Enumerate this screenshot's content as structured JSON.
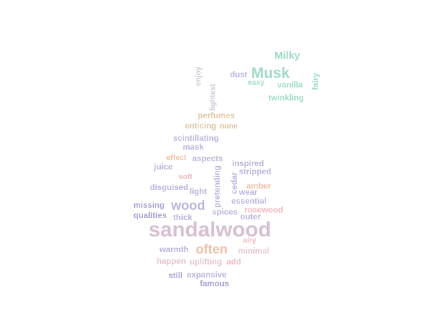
{
  "words": {
    "milky": "Milky",
    "musk": "Musk",
    "dust": "dust",
    "easy": "easy",
    "vanilla": "vanilla",
    "fairy": "fairy",
    "enjoy": "enjoy",
    "lightest": "lightest",
    "twinkling": "twinkling",
    "perfumes": "perfumes",
    "enticing": "enticing",
    "none": "none",
    "scintillating": "scintillating",
    "mask": "mask",
    "effect": "effect",
    "aspects": "aspects",
    "juice": "juice",
    "inspired": "inspired",
    "stripped": "stripped",
    "pretending": "pretending",
    "cedar": "cedar",
    "soft": "soft",
    "amber": "amber",
    "disguised": "disguised",
    "light": "light",
    "wear": "wear",
    "essential": "essential",
    "missing": "missing",
    "wood": "wood",
    "rosewood": "rosewood",
    "spices": "spices",
    "qualities": "qualities",
    "thick": "thick",
    "outer": "outer",
    "sandalwood": "sandalwood",
    "airy": "airy",
    "warmth": "warmth",
    "often": "often",
    "minimal": "minimal",
    "happen": "happen",
    "uplifting": "uplifting",
    "add": "add",
    "still": "still",
    "expansive": "expansive",
    "famous": "famous"
  },
  "colors": {
    "mint": "#9fdcc4",
    "lavender": "#bbb7dd",
    "pink": "#f3b8c0",
    "rose": "#e7c5cf",
    "sand": "#e3c8a4",
    "peach": "#f1c0a6",
    "mauve": "#d6bfd1",
    "background": "#ffffff"
  }
}
